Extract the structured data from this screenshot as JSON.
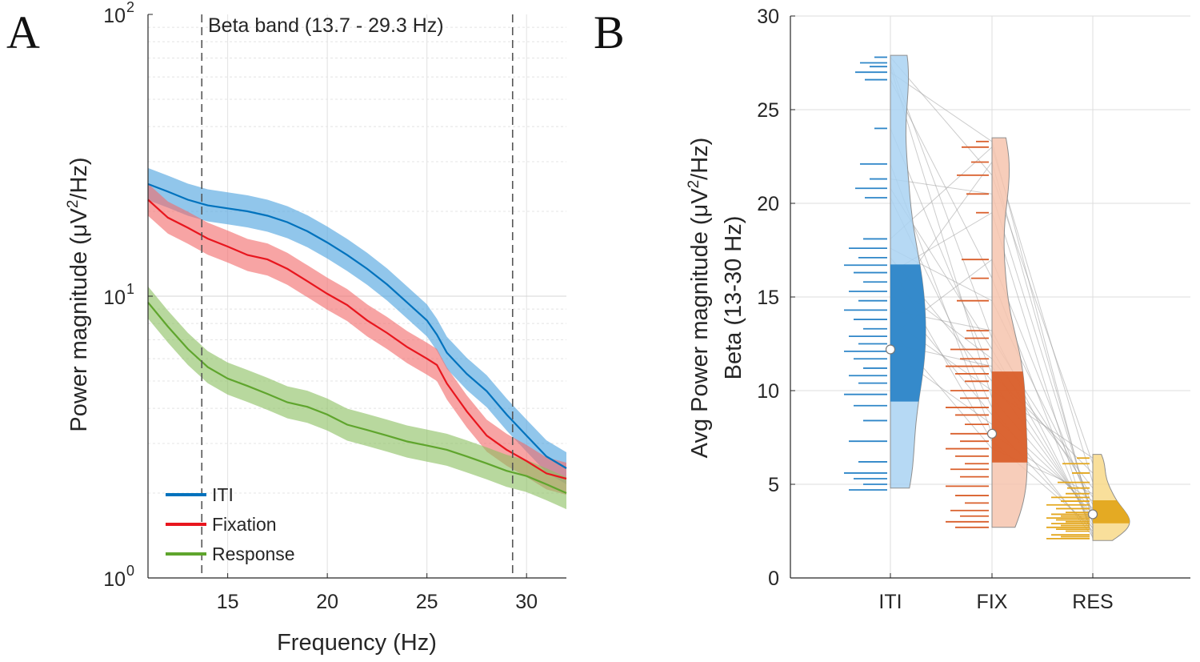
{
  "chart_data": [
    {
      "panel": "A",
      "type": "line",
      "title": "",
      "annotation": "Beta band (13.7 - 29.3 Hz)",
      "xlabel": "Frequency (Hz)",
      "ylabel_prefix": "Power magnitude (μV",
      "ylabel_sup": "2",
      "ylabel_suffix": "/Hz)",
      "yscale": "log",
      "xlim": [
        11,
        32
      ],
      "ylim": [
        1,
        100
      ],
      "xticks": [
        15,
        20,
        25,
        30
      ],
      "yticks": [
        {
          "value": 1,
          "base": "10",
          "exp": "0"
        },
        {
          "value": 10,
          "base": "10",
          "exp": "1"
        },
        {
          "value": 100,
          "base": "10",
          "exp": "2"
        }
      ],
      "band_lines": [
        13.7,
        29.3
      ],
      "legend_position": "bottom-left",
      "grid": true,
      "x": [
        11,
        12,
        13,
        14,
        15,
        16,
        17,
        18,
        19,
        20,
        21,
        22,
        23,
        24,
        25,
        25.5,
        26,
        27,
        28,
        29,
        30,
        31,
        32
      ],
      "series": [
        {
          "name": "ITI",
          "color": "#0072BD",
          "band_color": "#4DA3DF",
          "values": [
            25,
            23.5,
            22,
            21,
            20.5,
            20,
            19.3,
            18.3,
            17,
            15.5,
            14,
            12.5,
            11,
            9.5,
            8.2,
            7.3,
            6.3,
            5.3,
            4.6,
            3.8,
            3.2,
            2.7,
            2.45
          ]
        },
        {
          "name": "Fixation",
          "color": "#E8161E",
          "band_color": "#F26C6C",
          "values": [
            22,
            19,
            17.5,
            16,
            15,
            14,
            13.5,
            12.5,
            11.3,
            10.2,
            9.3,
            8.2,
            7.4,
            6.6,
            6.0,
            5.7,
            4.9,
            3.9,
            3.2,
            2.85,
            2.6,
            2.35,
            2.25
          ]
        },
        {
          "name": "Response",
          "color": "#5FA52D",
          "band_color": "#8CC063",
          "values": [
            9.5,
            7.8,
            6.5,
            5.6,
            5.1,
            4.8,
            4.5,
            4.2,
            4.05,
            3.8,
            3.5,
            3.35,
            3.2,
            3.05,
            2.95,
            2.9,
            2.85,
            2.7,
            2.55,
            2.4,
            2.3,
            2.15,
            2.0
          ]
        }
      ]
    },
    {
      "panel": "B",
      "type": "violin",
      "title": "",
      "xlabel": "",
      "ylabel_line1_prefix": "Avg Power magnitude (μV",
      "ylabel_line1_sup": "2",
      "ylabel_line1_suffix": "/Hz)",
      "ylabel_line2": "Beta (13-30 Hz)",
      "ylim": [
        0,
        30
      ],
      "yticks": [
        0,
        5,
        10,
        15,
        20,
        25,
        30
      ],
      "categories": [
        "ITI",
        "FIX",
        "RES"
      ],
      "grid": true,
      "groups": [
        {
          "name": "ITI",
          "color": "#2E86C8",
          "light": "#A9D2F2",
          "median": 12.2,
          "q1": 9.2,
          "q3": 17.0,
          "min": 4.8,
          "max": 27.9,
          "points": [
            27.8,
            27.5,
            27.3,
            27.0,
            26.6,
            24.0,
            22.1,
            21.3,
            20.8,
            20.3,
            18.1,
            17.6,
            17.1,
            16.7,
            16.3,
            15.8,
            15.3,
            14.8,
            14.3,
            13.8,
            13.3,
            12.9,
            12.5,
            12.1,
            11.7,
            11.2,
            10.8,
            10.4,
            9.8,
            9.2,
            8.4,
            7.3,
            6.2,
            5.6,
            5.3,
            5.0,
            4.7
          ]
        },
        {
          "name": "FIX",
          "color": "#D95F2B",
          "light": "#F6C4AE",
          "median": 7.7,
          "q1": 5.9,
          "q3": 11.2,
          "min": 2.7,
          "max": 23.5,
          "points": [
            23.3,
            23.0,
            22.2,
            21.5,
            20.5,
            19.5,
            17.0,
            16.0,
            14.8,
            13.2,
            12.8,
            12.2,
            11.7,
            11.3,
            10.9,
            10.5,
            10.0,
            9.6,
            9.1,
            8.7,
            8.2,
            7.7,
            7.3,
            6.9,
            6.5,
            6.1,
            5.8,
            5.4,
            4.9,
            4.4,
            4.0,
            3.6,
            3.3,
            3.0,
            2.7
          ]
        },
        {
          "name": "RES",
          "color": "#E3A61C",
          "light": "#F8D98A",
          "median": 3.4,
          "q1": 2.9,
          "q3": 4.2,
          "min": 2.0,
          "max": 6.6,
          "points": [
            6.4,
            6.1,
            5.6,
            5.1,
            4.8,
            4.5,
            4.3,
            4.1,
            3.9,
            3.7,
            3.5,
            3.4,
            3.3,
            3.2,
            3.1,
            3.0,
            2.9,
            2.8,
            2.7,
            2.6,
            2.5,
            2.3,
            2.2,
            2.1
          ]
        }
      ]
    }
  ],
  "figure": {
    "panel_a_letter": "A",
    "panel_b_letter": "B"
  }
}
